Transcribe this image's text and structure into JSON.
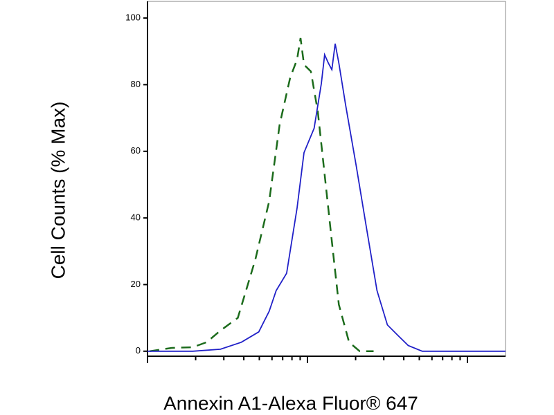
{
  "chart_data": {
    "type": "line",
    "x_label": "Annexin A1-Alexa Fluor® 647",
    "y_label": "Cell Counts (% Max)",
    "x_log_scale": true,
    "xlim": [
      1,
      173
    ],
    "ylim": [
      -1.5,
      105
    ],
    "yticks": [
      0,
      20,
      40,
      60,
      80,
      100
    ],
    "series": [
      {
        "color": "#1b6b1b",
        "style": "dashed",
        "x": [
          1.03,
          1.42,
          1.92,
          2.34,
          2.86,
          3.67,
          4.72,
          5.76,
          6.7,
          7.79,
          8.61,
          9.05,
          9.51,
          10.5,
          11.6,
          12.8,
          14.2,
          15.7,
          18.2,
          21.2,
          25.9
        ],
        "values": [
          0,
          1,
          1.2,
          2.7,
          6.2,
          10,
          27.5,
          45,
          68,
          82,
          87.6,
          94,
          86,
          84,
          72,
          53,
          33,
          14,
          2.7,
          0,
          0
        ]
      },
      {
        "color": "#2020c8",
        "style": "solid",
        "x": [
          1,
          1.92,
          2.86,
          3.86,
          4.96,
          5.76,
          6.37,
          7.41,
          8.61,
          9.51,
          11.0,
          12.2,
          12.8,
          13.5,
          14.2,
          14.9,
          15.7,
          17.3,
          20.2,
          23.4,
          27.2,
          31.6,
          36.7,
          42.7,
          52.2,
          77.8,
          173
        ],
        "values": [
          0,
          0,
          0.6,
          2.7,
          5.8,
          12,
          18.2,
          23.4,
          43,
          59.6,
          66.9,
          80.3,
          89,
          86.5,
          84.5,
          92.3,
          86.5,
          74,
          55.5,
          36.9,
          18.2,
          7.9,
          4.8,
          1.7,
          0,
          0,
          0
        ]
      }
    ]
  }
}
